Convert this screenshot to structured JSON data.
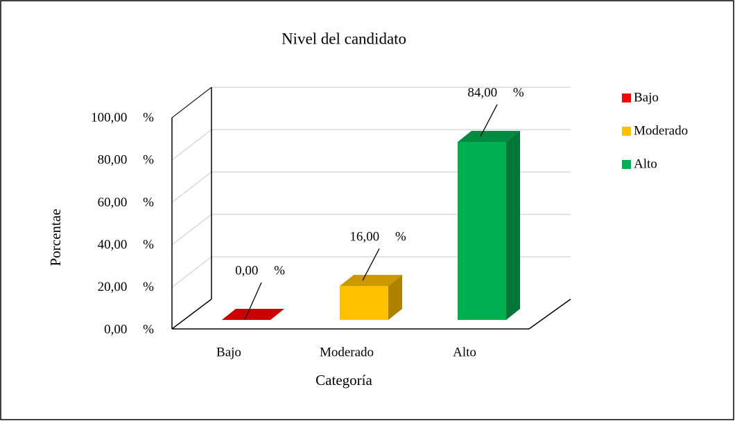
{
  "chart_data": {
    "type": "bar3d",
    "title": "Nivel del candidato",
    "x_label": "Categoría",
    "y_label": "Porcentae",
    "categories": [
      "Bajo",
      "Moderado",
      "Alto"
    ],
    "values": [
      0,
      16,
      84
    ],
    "value_labels": [
      "0,00 %",
      "16,00 %",
      "84,00 %"
    ],
    "colors": [
      "#ff0000",
      "#ffc000",
      "#00b050"
    ],
    "ylim": [
      0,
      100
    ],
    "yticks": [
      {
        "value": 0,
        "label": "0,00 %"
      },
      {
        "value": 20,
        "label": "20,00 %"
      },
      {
        "value": 40,
        "label": "40,00 %"
      },
      {
        "value": 60,
        "label": "60,00 %"
      },
      {
        "value": 80,
        "label": "80,00 %"
      },
      {
        "value": 100,
        "label": "100,00 %"
      }
    ],
    "grid": true,
    "legend": "right"
  }
}
